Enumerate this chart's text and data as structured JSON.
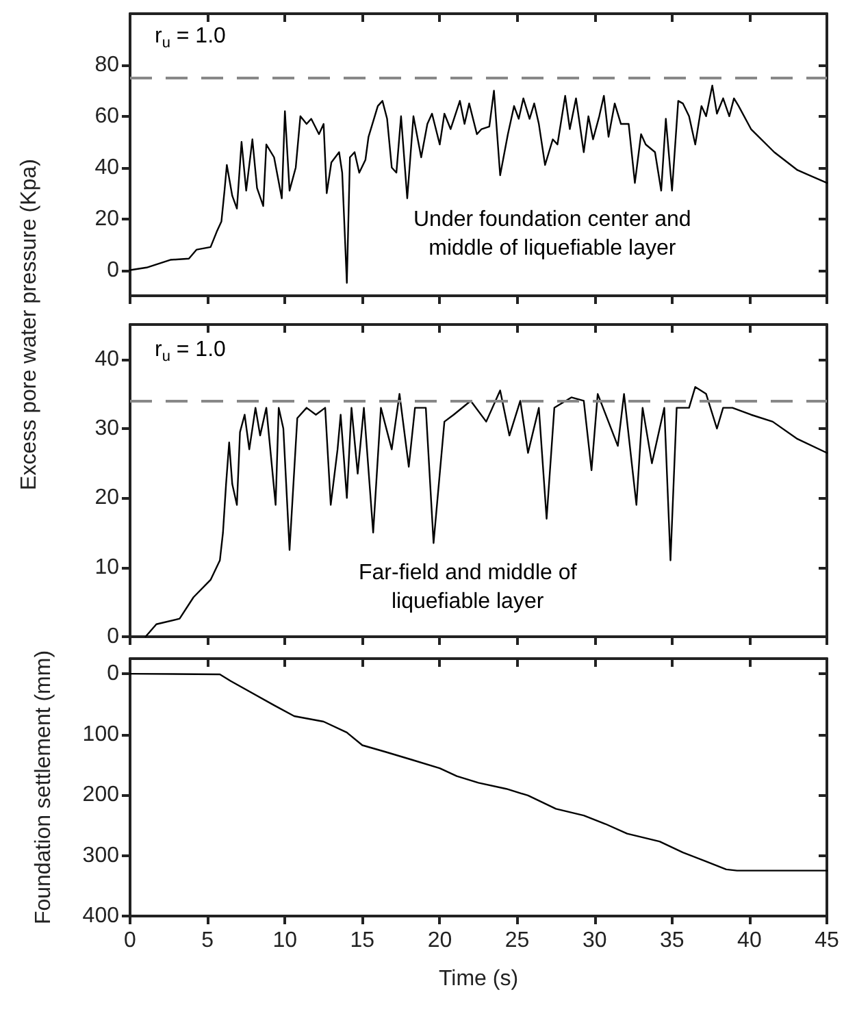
{
  "chart_data": [
    {
      "type": "line",
      "ylabel": "Excess pore water pressure (Kpa)",
      "xlim": [
        0,
        45
      ],
      "xticks": [
        0,
        5,
        10,
        15,
        20,
        25,
        30,
        35,
        40,
        45
      ],
      "ylim": [
        -10,
        100
      ],
      "yticks": [
        0,
        20,
        40,
        60,
        80
      ],
      "tick_labels": "y",
      "grid": false,
      "marker": "none",
      "line_style": "solid",
      "ref_lines": [
        {
          "axis": "y",
          "value": 75,
          "color": "#888888",
          "line_style": "dashed"
        }
      ],
      "annotations": [
        "r$_{u}$ = 1.0",
        "Under foundation center and\nmiddle of liquefiable layer"
      ],
      "series": [
        {
          "color": "#000000",
          "x": [
            0,
            1.07,
            2.6,
            3.8,
            4.3,
            5.2,
            5.6,
            5.9,
            6.1,
            6.25,
            6.6,
            6.9,
            7.2,
            7.5,
            7.9,
            8.2,
            8.6,
            8.8,
            9.3,
            9.8,
            10.0,
            10.3,
            10.7,
            11.0,
            11.4,
            11.7,
            12.2,
            12.5,
            12.7,
            13.0,
            13.5,
            13.7,
            14.0,
            14.2,
            14.5,
            14.8,
            15.2,
            15.4,
            16.0,
            16.3,
            16.6,
            16.9,
            17.2,
            17.5,
            17.9,
            18.3,
            18.8,
            19.2,
            19.5,
            20.0,
            20.3,
            20.7,
            21.3,
            21.6,
            21.9,
            22.4,
            22.7,
            23.2,
            23.5,
            23.9,
            24.4,
            24.8,
            25.1,
            25.4,
            25.8,
            26.1,
            26.4,
            26.8,
            27.3,
            27.6,
            28.1,
            28.4,
            28.8,
            29.3,
            29.6,
            29.9,
            30.3,
            30.6,
            30.9,
            31.3,
            31.7,
            32.2,
            32.6,
            33.0,
            33.3,
            33.9,
            34.3,
            34.6,
            35.0,
            35.4,
            35.7,
            36.1,
            36.5,
            36.9,
            37.2,
            37.6,
            37.9,
            38.3,
            38.7,
            39.0,
            39.3,
            40.1,
            41.6,
            43.1,
            45
          ],
          "values": [
            0,
            1,
            4,
            4.5,
            8,
            9,
            15,
            19,
            31,
            41,
            29,
            24,
            50,
            31,
            51,
            32,
            25,
            49,
            44,
            28,
            62,
            31,
            40,
            60,
            57,
            59,
            53,
            57,
            30,
            42,
            46,
            38,
            -5,
            44,
            46,
            38,
            43,
            52,
            64,
            66,
            59,
            40,
            38,
            60,
            28,
            60,
            44,
            57,
            61,
            49,
            61,
            55,
            66,
            57,
            65,
            53,
            55,
            56,
            70,
            37,
            53,
            64,
            59,
            67,
            59,
            65,
            57,
            41,
            51,
            49,
            68,
            55,
            67,
            46,
            60,
            51,
            60,
            68,
            52,
            65,
            57,
            57,
            34,
            53,
            49,
            46,
            31,
            59,
            31,
            66,
            65,
            60,
            49,
            64,
            60,
            72,
            61,
            67,
            60,
            67,
            64,
            55,
            46,
            39,
            34
          ]
        }
      ]
    },
    {
      "type": "line",
      "xlim": [
        0,
        45
      ],
      "xticks": [
        0,
        5,
        10,
        15,
        20,
        25,
        30,
        35,
        40,
        45
      ],
      "ylim": [
        0,
        45
      ],
      "yticks": [
        0,
        10,
        20,
        30,
        40
      ],
      "tick_labels": "y",
      "grid": false,
      "marker": "none",
      "line_style": "solid",
      "ref_lines": [
        {
          "axis": "y",
          "value": 34,
          "color": "#888888",
          "line_style": "dashed"
        }
      ],
      "annotations": [
        "r$_{u}$ = 1.0",
        "Far-field and middle of\nliquefiable layer"
      ],
      "series": [
        {
          "color": "#000000",
          "x": [
            1.0,
            1.7,
            3.2,
            4.1,
            5.2,
            5.8,
            6.0,
            6.2,
            6.4,
            6.6,
            6.9,
            7.1,
            7.4,
            7.7,
            8.1,
            8.4,
            8.8,
            9.4,
            9.6,
            9.9,
            10.3,
            10.8,
            11.4,
            12.0,
            12.6,
            12.96,
            13.4,
            13.6,
            14.0,
            14.3,
            14.7,
            15.1,
            15.7,
            16.2,
            16.9,
            17.4,
            18.0,
            18.4,
            19.1,
            19.6,
            20.3,
            20.9,
            22.0,
            23.0,
            23.9,
            24.5,
            25.2,
            25.7,
            26.4,
            26.9,
            27.4,
            28.5,
            29.3,
            29.8,
            30.2,
            31.5,
            31.9,
            32.7,
            33.1,
            33.7,
            34.5,
            34.9,
            35.3,
            36.1,
            36.5,
            37.2,
            37.9,
            38.3,
            38.9,
            40.1,
            41.5,
            43.1,
            45
          ],
          "values": [
            0,
            1.8,
            2.6,
            5.7,
            8.2,
            11,
            15,
            22,
            28,
            22,
            19,
            29.5,
            32,
            27,
            33,
            29,
            33,
            19,
            33,
            30,
            12.5,
            31.5,
            33,
            32,
            33,
            19,
            27,
            32,
            20,
            33,
            23.5,
            33,
            15,
            33,
            27,
            35,
            24.5,
            33,
            33,
            13.5,
            31,
            32,
            34,
            31,
            35.5,
            29,
            34,
            26.5,
            33,
            17,
            33,
            34.5,
            34,
            24,
            35,
            27.5,
            35,
            19,
            33,
            25,
            33,
            11,
            33,
            33,
            36,
            35,
            30,
            33,
            33,
            32,
            31,
            28.5,
            26.5
          ]
        }
      ]
    },
    {
      "type": "line",
      "xlabel": "Time (s)",
      "ylabel": "Foundation settlement (mm)",
      "xlim": [
        0,
        45
      ],
      "xticks": [
        0,
        5,
        10,
        15,
        20,
        25,
        30,
        35,
        40,
        45
      ],
      "ylim": [
        400,
        -25
      ],
      "yticks": [
        0,
        100,
        200,
        300,
        400
      ],
      "grid": false,
      "marker": "none",
      "line_style": "solid",
      "series": [
        {
          "color": "#000000",
          "x": [
            0,
            5.8,
            6.5,
            9.3,
            10.6,
            12.5,
            14,
            15,
            16.5,
            18.2,
            20,
            21.1,
            22.5,
            24.3,
            25.7,
            27.5,
            29.3,
            30.7,
            32.1,
            34.2,
            35.7,
            37.1,
            38.5,
            39.2,
            45
          ],
          "values": [
            0,
            1,
            12,
            52,
            70,
            79,
            97,
            118,
            129,
            142,
            156,
            169,
            180,
            190,
            201,
            223,
            234,
            248,
            264,
            277,
            295,
            309,
            323,
            325,
            325
          ]
        }
      ]
    }
  ]
}
